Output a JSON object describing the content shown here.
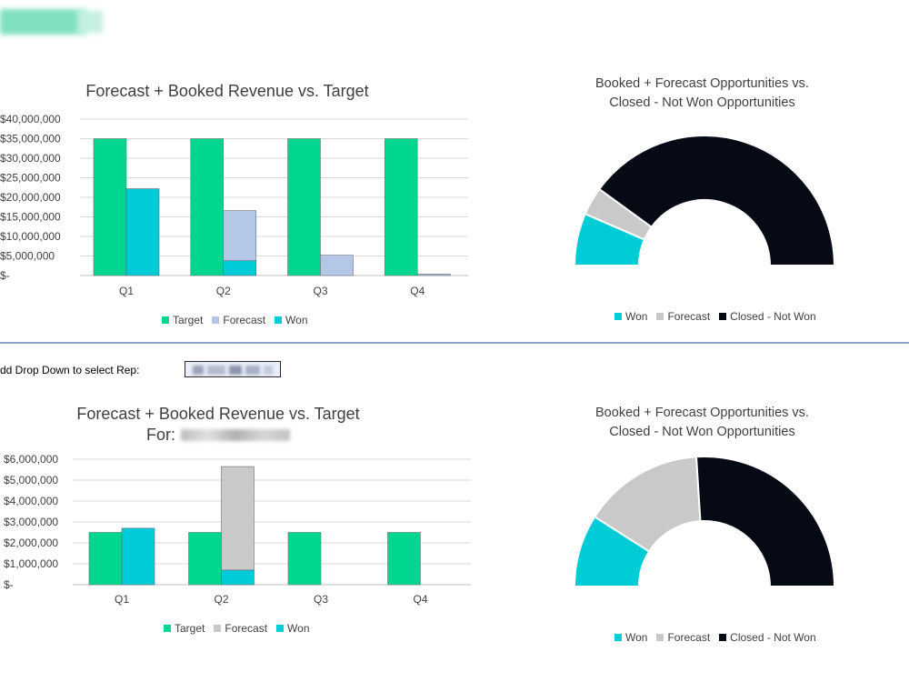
{
  "colors": {
    "target": "#00d68f",
    "forecast_top": "#b4c7e7",
    "forecast_bottom": "#c9c9c9",
    "won": "#00ccd8",
    "closed_not_won": "#050a14",
    "grid": "#d9d9d9",
    "divider": "#8ea2cf"
  },
  "rep_selector": {
    "label": "dd Drop Down to select Rep:"
  },
  "top_chart": {
    "title": "Forecast  + Booked Revenue vs. Target"
  },
  "top_donut": {
    "title_line1": "Booked + Forecast Opportunities vs.",
    "title_line2": "Closed - Not Won Opportunities"
  },
  "bottom_chart": {
    "title_line1": "Forecast + Booked Revenue vs. Target",
    "title_line2_prefix": "For:"
  },
  "bottom_donut": {
    "title_line1": "Booked + Forecast Opportunities vs.",
    "title_line2": "Closed - Not Won Opportunities"
  },
  "chart_data": [
    {
      "type": "bar",
      "title": "Forecast  + Booked Revenue vs. Target",
      "categories": [
        "Q1",
        "Q2",
        "Q3",
        "Q4"
      ],
      "series": [
        {
          "name": "Target",
          "values": [
            35000000,
            35000000,
            35000000,
            35000000
          ]
        },
        {
          "name": "Forecast",
          "values": [
            0,
            12800000,
            5200000,
            400000
          ]
        },
        {
          "name": "Won",
          "values": [
            22200000,
            3800000,
            0,
            0
          ]
        }
      ],
      "stacked": [
        "Won",
        "Forecast"
      ],
      "y_ticks": [
        "$-",
        "$5,000,000",
        "$10,000,000",
        "$15,000,000",
        "$20,000,000",
        "$25,000,000",
        "$30,000,000",
        "$35,000,000",
        "$40,000,000"
      ],
      "ylim": [
        0,
        40000000
      ],
      "grid": true,
      "legend": "bottom"
    },
    {
      "type": "pie",
      "title": "Booked + Forecast Opportunities vs. Closed - Not Won Opportunities",
      "style": "half-donut",
      "labels": [
        "Won",
        "Forecast",
        "Closed - Not Won"
      ],
      "values": [
        13,
        7,
        80
      ],
      "legend": "bottom"
    },
    {
      "type": "bar",
      "title": "Forecast + Booked Revenue vs. Target",
      "categories": [
        "Q1",
        "Q2",
        "Q3",
        "Q4"
      ],
      "series": [
        {
          "name": "Target",
          "values": [
            2500000,
            2500000,
            2500000,
            2500000
          ]
        },
        {
          "name": "Forecast",
          "values": [
            0,
            4950000,
            0,
            0
          ]
        },
        {
          "name": "Won",
          "values": [
            2700000,
            700000,
            0,
            0
          ]
        }
      ],
      "stacked": [
        "Won",
        "Forecast"
      ],
      "y_ticks": [
        "$-",
        "$1,000,000",
        "$2,000,000",
        "$3,000,000",
        "$4,000,000",
        "$5,000,000",
        "$6,000,000"
      ],
      "ylim": [
        0,
        6000000
      ],
      "grid": true,
      "legend": "bottom"
    },
    {
      "type": "pie",
      "title": "Booked + Forecast Opportunities vs. Closed - Not Won Opportunities",
      "style": "half-donut",
      "labels": [
        "Won",
        "Forecast",
        "Closed - Not Won"
      ],
      "values": [
        18,
        30,
        52
      ],
      "legend": "bottom"
    }
  ]
}
